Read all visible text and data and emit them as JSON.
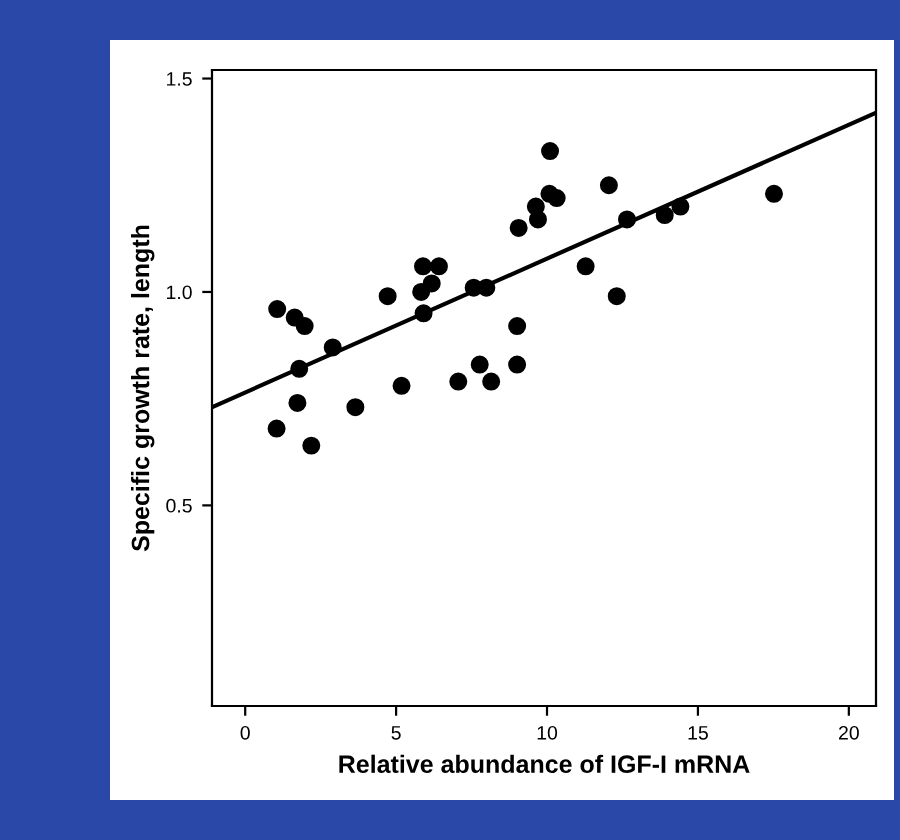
{
  "chart_data": {
    "type": "scatter",
    "xlabel": "Relative abundance of IGF-I mRNA",
    "ylabel": "Specific growth rate, length",
    "series": [
      {
        "color": "#000000",
        "marker": "circle",
        "x": [
          1.06,
          1.64,
          1.97,
          1.79,
          2.9,
          1.73,
          1.04,
          2.19,
          3.65,
          4.72,
          5.18,
          5.83,
          5.89,
          6.42,
          6.18,
          5.91,
          7.06,
          7.57,
          7.99,
          7.77,
          8.15,
          9.06,
          9.01,
          9.01,
          10.1,
          10.08,
          10.32,
          9.63,
          9.7,
          12.05,
          12.65,
          13.9,
          14.42,
          17.52,
          11.28,
          12.31
        ],
        "values": [
          0.96,
          0.94,
          0.92,
          0.82,
          0.87,
          0.74,
          0.68,
          0.64,
          0.73,
          0.99,
          0.78,
          1.0,
          1.06,
          1.06,
          1.02,
          0.95,
          0.79,
          1.01,
          1.01,
          0.83,
          0.79,
          1.15,
          0.92,
          0.83,
          1.33,
          1.23,
          1.22,
          1.2,
          1.17,
          1.25,
          1.17,
          1.18,
          1.2,
          1.23,
          1.06,
          0.99
        ]
      },
      {
        "type": "line",
        "color": "#000000",
        "marker": "none",
        "line_style": "solid",
        "x": [
          -1.1,
          20.9
        ],
        "values": [
          0.73,
          1.42
        ]
      }
    ],
    "xlim": [
      -1.1,
      20.9
    ],
    "ylim": [
      0.03,
      1.52
    ],
    "xticks": [
      0,
      5,
      10,
      15,
      20
    ],
    "yticks": [
      {
        "value": 0.5,
        "label": "0.5"
      },
      {
        "value": 1.0,
        "label": "1.0"
      },
      {
        "value": 1.5,
        "label": "1.5"
      }
    ],
    "grid": false,
    "legend": false
  }
}
